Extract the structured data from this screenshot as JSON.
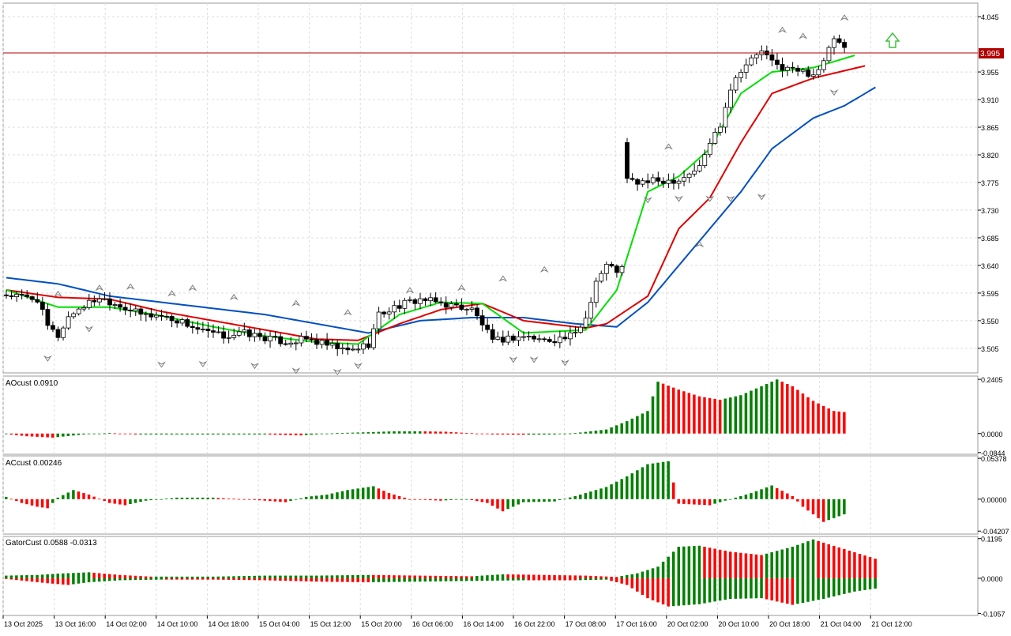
{
  "colors": {
    "background": "#ffffff",
    "grid": "#dcdcdc",
    "frame": "#9a9a9a",
    "bull_candle": "#ffffff",
    "bear_candle": "#000000",
    "lips": "#00e000",
    "teeth": "#e00000",
    "jaw": "#0050c0",
    "hist_up": "#008000",
    "hist_down": "#ff0000",
    "price_line": "#b00000",
    "price_tag_bg": "#b00000",
    "price_tag_text": "#ffffff",
    "fractal": "#808080",
    "signal_arrow": "#40c040"
  },
  "main_chart": {
    "current_price": "3.995",
    "price_axis": [
      "4.045",
      "3.955",
      "3.910",
      "3.865",
      "3.820",
      "3.775",
      "3.730",
      "3.685",
      "3.640",
      "3.595",
      "3.550",
      "3.505"
    ],
    "ylim": [
      3.465,
      4.067
    ],
    "signal_arrow_icon": "arrow-up-icon"
  },
  "panels": {
    "ao": {
      "title": "AOcust 0.0910",
      "axis": [
        "0.2405",
        "0.0000",
        "-0.0844"
      ],
      "ylim": [
        -0.092,
        0.255
      ]
    },
    "ac": {
      "title": "ACcust 0.00246",
      "axis": [
        "0.05378",
        "0.00000",
        "-0.04207"
      ],
      "ylim": [
        -0.046,
        0.057
      ]
    },
    "gator": {
      "title": "GatorCust 0.0588 -0.0313",
      "axis": [
        "0.1195",
        "0.0000",
        "-0.1057"
      ],
      "ylim": [
        -0.112,
        0.126
      ]
    }
  },
  "time_axis": [
    "13 Oct 2025",
    "13 Oct 16:00",
    "14 Oct 02:00",
    "14 Oct 10:00",
    "14 Oct 18:00",
    "15 Oct 04:00",
    "15 Oct 12:00",
    "15 Oct 20:00",
    "16 Oct 06:00",
    "16 Oct 14:00",
    "16 Oct 22:00",
    "17 Oct 08:00",
    "17 Oct 16:00",
    "20 Oct 02:00",
    "20 Oct 10:00",
    "20 Oct 18:00",
    "21 Oct 04:00",
    "21 Oct 12:00"
  ],
  "chart_data": {
    "type": "candlestick",
    "close_anchors": [
      [
        0,
        3.592
      ],
      [
        6,
        3.585
      ],
      [
        8,
        3.54
      ],
      [
        10,
        3.525
      ],
      [
        12,
        3.556
      ],
      [
        14,
        3.57
      ],
      [
        18,
        3.588
      ],
      [
        22,
        3.575
      ],
      [
        26,
        3.56
      ],
      [
        30,
        3.558
      ],
      [
        34,
        3.548
      ],
      [
        38,
        3.532
      ],
      [
        42,
        3.525
      ],
      [
        46,
        3.53
      ],
      [
        50,
        3.522
      ],
      [
        54,
        3.515
      ],
      [
        58,
        3.52
      ],
      [
        62,
        3.51
      ],
      [
        66,
        3.5
      ],
      [
        70,
        3.512
      ],
      [
        72,
        3.56
      ],
      [
        76,
        3.575
      ],
      [
        80,
        3.585
      ],
      [
        84,
        3.578
      ],
      [
        88,
        3.572
      ],
      [
        90,
        3.568
      ],
      [
        92,
        3.545
      ],
      [
        94,
        3.515
      ],
      [
        96,
        3.52
      ],
      [
        100,
        3.525
      ],
      [
        104,
        3.518
      ],
      [
        108,
        3.522
      ],
      [
        110,
        3.528
      ],
      [
        112,
        3.555
      ],
      [
        114,
        3.615
      ],
      [
        116,
        3.64
      ],
      [
        118,
        3.632
      ],
      [
        119,
        3.635
      ],
      [
        120,
        3.779
      ],
      [
        122,
        3.775
      ],
      [
        130,
        3.78
      ],
      [
        134,
        3.8
      ],
      [
        136,
        3.84
      ],
      [
        138,
        3.87
      ],
      [
        140,
        3.93
      ],
      [
        142,
        3.96
      ],
      [
        144,
        3.975
      ],
      [
        146,
        3.99
      ],
      [
        148,
        3.97
      ],
      [
        150,
        3.962
      ],
      [
        154,
        3.955
      ],
      [
        156,
        3.952
      ],
      [
        158,
        3.97
      ],
      [
        160,
        4.01
      ],
      [
        162,
        3.99
      ]
    ],
    "alligator": {
      "lips": [
        [
          0,
          3.6
        ],
        [
          10,
          3.572
        ],
        [
          20,
          3.572
        ],
        [
          30,
          3.558
        ],
        [
          40,
          3.54
        ],
        [
          50,
          3.525
        ],
        [
          60,
          3.515
        ],
        [
          68,
          3.512
        ],
        [
          76,
          3.56
        ],
        [
          84,
          3.58
        ],
        [
          92,
          3.578
        ],
        [
          100,
          3.53
        ],
        [
          112,
          3.535
        ],
        [
          118,
          3.6
        ],
        [
          124,
          3.76
        ],
        [
          130,
          3.785
        ],
        [
          136,
          3.83
        ],
        [
          142,
          3.92
        ],
        [
          148,
          3.955
        ],
        [
          156,
          3.962
        ],
        [
          164,
          3.982
        ]
      ],
      "teeth": [
        [
          0,
          3.6
        ],
        [
          10,
          3.588
        ],
        [
          20,
          3.585
        ],
        [
          30,
          3.565
        ],
        [
          40,
          3.55
        ],
        [
          50,
          3.535
        ],
        [
          60,
          3.52
        ],
        [
          68,
          3.518
        ],
        [
          76,
          3.545
        ],
        [
          84,
          3.568
        ],
        [
          92,
          3.578
        ],
        [
          100,
          3.55
        ],
        [
          112,
          3.538
        ],
        [
          116,
          3.545
        ],
        [
          124,
          3.59
        ],
        [
          130,
          3.7
        ],
        [
          136,
          3.75
        ],
        [
          142,
          3.84
        ],
        [
          148,
          3.92
        ],
        [
          156,
          3.945
        ],
        [
          166,
          3.965
        ]
      ],
      "jaw": [
        [
          0,
          3.62
        ],
        [
          10,
          3.61
        ],
        [
          20,
          3.59
        ],
        [
          30,
          3.58
        ],
        [
          40,
          3.57
        ],
        [
          50,
          3.56
        ],
        [
          60,
          3.545
        ],
        [
          70,
          3.53
        ],
        [
          80,
          3.55
        ],
        [
          90,
          3.555
        ],
        [
          100,
          3.555
        ],
        [
          110,
          3.545
        ],
        [
          118,
          3.54
        ],
        [
          124,
          3.58
        ],
        [
          130,
          3.64
        ],
        [
          136,
          3.7
        ],
        [
          142,
          3.76
        ],
        [
          148,
          3.83
        ],
        [
          156,
          3.88
        ],
        [
          162,
          3.9
        ],
        [
          168,
          3.93
        ]
      ]
    },
    "ao_anchors": [
      [
        0,
        -0.002
      ],
      [
        4,
        -0.012
      ],
      [
        9,
        -0.018
      ],
      [
        15,
        -0.004
      ],
      [
        20,
        0.002
      ],
      [
        25,
        -0.004
      ],
      [
        40,
        -0.004
      ],
      [
        50,
        -0.004
      ],
      [
        57,
        -0.008
      ],
      [
        64,
        0.002
      ],
      [
        70,
        0.006
      ],
      [
        75,
        0.01
      ],
      [
        80,
        0.01
      ],
      [
        85,
        0.008
      ],
      [
        88,
        0.004
      ],
      [
        94,
        -0.004
      ],
      [
        100,
        -0.005
      ],
      [
        106,
        -0.004
      ],
      [
        110,
        0.002
      ],
      [
        116,
        0.018
      ],
      [
        120,
        0.055
      ],
      [
        124,
        0.1
      ],
      [
        126,
        0.23
      ],
      [
        130,
        0.195
      ],
      [
        134,
        0.165
      ],
      [
        138,
        0.15
      ],
      [
        142,
        0.17
      ],
      [
        146,
        0.21
      ],
      [
        149,
        0.24
      ],
      [
        152,
        0.21
      ],
      [
        156,
        0.145
      ],
      [
        160,
        0.1
      ],
      [
        164,
        0.091
      ]
    ],
    "ac_anchors": [
      [
        0,
        0.003
      ],
      [
        3,
        -0.005
      ],
      [
        6,
        -0.01
      ],
      [
        8,
        -0.012
      ],
      [
        10,
        0.002
      ],
      [
        13,
        0.012
      ],
      [
        16,
        0.006
      ],
      [
        20,
        -0.005
      ],
      [
        23,
        -0.008
      ],
      [
        27,
        -0.002
      ],
      [
        33,
        0.002
      ],
      [
        40,
        0.002
      ],
      [
        48,
        -0.001
      ],
      [
        54,
        -0.004
      ],
      [
        58,
        0.003
      ],
      [
        62,
        0.006
      ],
      [
        66,
        0.012
      ],
      [
        71,
        0.017
      ],
      [
        74,
        0.008
      ],
      [
        78,
        0.0
      ],
      [
        84,
        -0.002
      ],
      [
        89,
        0.0
      ],
      [
        93,
        -0.005
      ],
      [
        96,
        -0.016
      ],
      [
        100,
        -0.004
      ],
      [
        106,
        -0.003
      ],
      [
        110,
        0.004
      ],
      [
        116,
        0.016
      ],
      [
        120,
        0.03
      ],
      [
        124,
        0.046
      ],
      [
        128,
        0.05
      ],
      [
        130,
        -0.006
      ],
      [
        136,
        -0.008
      ],
      [
        140,
        0.0
      ],
      [
        144,
        0.008
      ],
      [
        148,
        0.018
      ],
      [
        152,
        0.004
      ],
      [
        154,
        -0.01
      ],
      [
        158,
        -0.03
      ],
      [
        162,
        -0.02
      ],
      [
        166,
        0.002
      ]
    ],
    "gator_upper_anchors": [
      [
        0,
        0.008
      ],
      [
        6,
        0.01
      ],
      [
        10,
        0.014
      ],
      [
        16,
        0.018
      ],
      [
        22,
        0.01
      ],
      [
        28,
        0.005
      ],
      [
        40,
        0.005
      ],
      [
        50,
        0.008
      ],
      [
        60,
        0.008
      ],
      [
        70,
        0.01
      ],
      [
        80,
        0.008
      ],
      [
        90,
        0.006
      ],
      [
        96,
        0.012
      ],
      [
        104,
        0.01
      ],
      [
        112,
        0.008
      ],
      [
        118,
        0.004
      ],
      [
        122,
        0.015
      ],
      [
        126,
        0.035
      ],
      [
        130,
        0.095
      ],
      [
        134,
        0.098
      ],
      [
        140,
        0.08
      ],
      [
        146,
        0.07
      ],
      [
        152,
        0.095
      ],
      [
        156,
        0.117
      ],
      [
        162,
        0.088
      ],
      [
        168,
        0.059
      ]
    ],
    "gator_lower_anchors": [
      [
        0,
        -0.002
      ],
      [
        8,
        -0.015
      ],
      [
        12,
        -0.02
      ],
      [
        16,
        -0.012
      ],
      [
        22,
        -0.006
      ],
      [
        30,
        -0.004
      ],
      [
        40,
        -0.004
      ],
      [
        50,
        -0.006
      ],
      [
        60,
        -0.01
      ],
      [
        70,
        -0.012
      ],
      [
        80,
        -0.01
      ],
      [
        90,
        -0.008
      ],
      [
        100,
        -0.006
      ],
      [
        110,
        -0.006
      ],
      [
        116,
        -0.004
      ],
      [
        120,
        -0.02
      ],
      [
        124,
        -0.06
      ],
      [
        128,
        -0.085
      ],
      [
        134,
        -0.078
      ],
      [
        140,
        -0.062
      ],
      [
        146,
        -0.06
      ],
      [
        152,
        -0.08
      ],
      [
        158,
        -0.062
      ],
      [
        164,
        -0.04
      ],
      [
        168,
        -0.031
      ]
    ],
    "fractals_up": [
      [
        10,
        3.59
      ],
      [
        18,
        3.6
      ],
      [
        24,
        3.602
      ],
      [
        32,
        3.591
      ],
      [
        36,
        3.6
      ],
      [
        44,
        3.585
      ],
      [
        56,
        3.575
      ],
      [
        66,
        3.56
      ],
      [
        78,
        3.596
      ],
      [
        88,
        3.6
      ],
      [
        96,
        3.615
      ],
      [
        104,
        3.63
      ],
      [
        128,
        3.83
      ],
      [
        134,
        3.671
      ],
      [
        150,
        4.02
      ],
      [
        154,
        4.01
      ],
      [
        162,
        4.04
      ]
    ],
    "fractals_down": [
      [
        8,
        3.492
      ],
      [
        16,
        3.54
      ],
      [
        30,
        3.482
      ],
      [
        38,
        3.483
      ],
      [
        48,
        3.48
      ],
      [
        56,
        3.472
      ],
      [
        64,
        3.47
      ],
      [
        68,
        3.48
      ],
      [
        98,
        3.49
      ],
      [
        102,
        3.49
      ],
      [
        108,
        3.485
      ],
      [
        124,
        3.75
      ],
      [
        130,
        3.752
      ],
      [
        136,
        3.752
      ],
      [
        140,
        3.752
      ],
      [
        146,
        3.755
      ],
      [
        160,
        3.925
      ]
    ]
  }
}
